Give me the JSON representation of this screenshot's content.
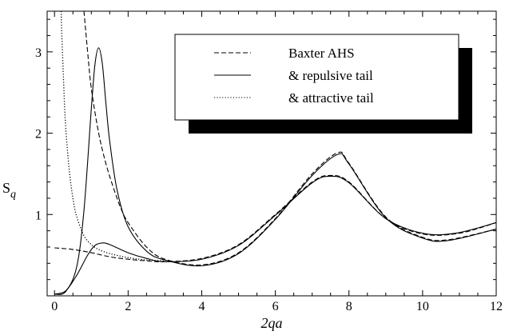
{
  "chart_data": {
    "type": "line",
    "xlabel": "2qa",
    "ylabel": "S",
    "ylabel_sub": "q",
    "xlim": [
      -0.2,
      12
    ],
    "ylim": [
      0,
      3.5
    ],
    "xticks": [
      0,
      2,
      4,
      6,
      8,
      10,
      12
    ],
    "yticks": [
      1,
      2,
      3
    ],
    "grid": false,
    "legend_position": "top-right",
    "series": [
      {
        "name": "Baxter AHS",
        "style": "dashed",
        "x": [
          0.0,
          0.5,
          1.0,
          1.5,
          2.0,
          2.5,
          3.0,
          4.0,
          5.0,
          6.0,
          7.0,
          7.5,
          8.0,
          9.0,
          10.0,
          11.0,
          12.0
        ],
        "y": [
          0.59,
          0.57,
          0.53,
          0.48,
          0.45,
          0.43,
          0.42,
          0.46,
          0.63,
          1.0,
          1.4,
          1.48,
          1.4,
          0.95,
          0.76,
          0.77,
          0.9
        ]
      },
      {
        "name": "Baxter AHS",
        "style": "dashed",
        "x": [
          0.8,
          0.9,
          1.0,
          1.2,
          1.4,
          1.6,
          1.8,
          2.0,
          2.5,
          3.0,
          4.0,
          5.0,
          6.0,
          7.0,
          7.7,
          8.0,
          9.0,
          10.0,
          10.7,
          12.0
        ],
        "y": [
          3.5,
          3.0,
          2.55,
          2.0,
          1.62,
          1.33,
          1.08,
          0.9,
          0.6,
          0.45,
          0.38,
          0.53,
          0.95,
          1.5,
          1.76,
          1.63,
          0.97,
          0.72,
          0.69,
          0.82
        ]
      },
      {
        "name": "& repulsive tail",
        "style": "solid",
        "x": [
          0.0,
          0.3,
          0.6,
          0.8,
          1.0,
          1.1,
          1.2,
          1.3,
          1.4,
          1.5,
          1.7,
          2.0,
          2.5,
          3.0,
          4.0,
          5.0,
          6.0,
          7.0,
          7.7,
          8.0,
          9.0,
          10.0,
          10.7,
          12.0
        ],
        "y": [
          0.02,
          0.05,
          0.35,
          1.05,
          2.3,
          2.85,
          3.05,
          2.85,
          2.35,
          1.9,
          1.3,
          0.85,
          0.55,
          0.44,
          0.37,
          0.52,
          0.94,
          1.48,
          1.74,
          1.62,
          0.96,
          0.71,
          0.68,
          0.82
        ]
      },
      {
        "name": "& repulsive tail",
        "style": "solid",
        "x": [
          0.0,
          0.3,
          0.6,
          0.9,
          1.1,
          1.3,
          1.5,
          2.0,
          2.5,
          3.0,
          4.0,
          5.0,
          6.0,
          7.0,
          7.5,
          8.0,
          9.0,
          10.0,
          10.9,
          12.0
        ],
        "y": [
          0.02,
          0.06,
          0.25,
          0.5,
          0.62,
          0.65,
          0.63,
          0.53,
          0.46,
          0.42,
          0.45,
          0.62,
          0.99,
          1.39,
          1.47,
          1.39,
          0.95,
          0.77,
          0.77,
          0.9
        ]
      },
      {
        "name": "& attractive tail",
        "style": "dotted",
        "x": [
          0.18,
          0.2,
          0.25,
          0.3,
          0.4,
          0.5,
          0.6,
          0.8,
          1.0,
          1.2,
          1.5,
          2.0,
          2.5,
          3.0
        ],
        "y": [
          3.5,
          3.2,
          2.6,
          2.1,
          1.55,
          1.2,
          0.98,
          0.74,
          0.63,
          0.57,
          0.52,
          0.47,
          0.44,
          0.43
        ]
      }
    ]
  }
}
